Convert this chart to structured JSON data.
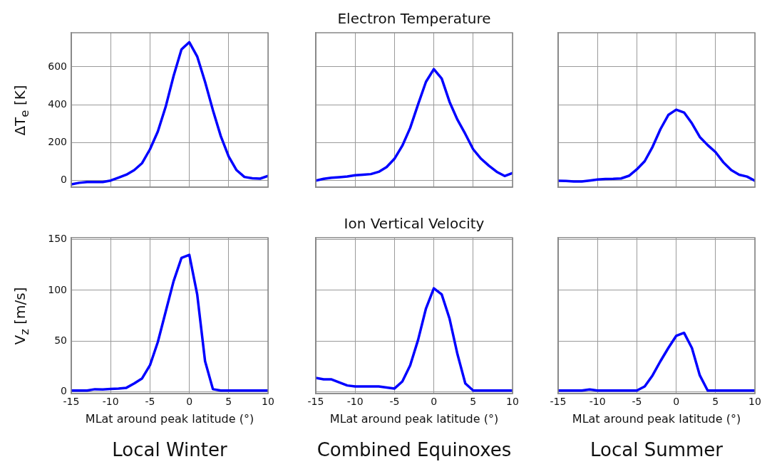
{
  "chart_data": [
    {
      "type": "line",
      "ylabel": "ΔT$_{e}$ [K]",
      "x": [
        -15,
        -14,
        -13,
        -12,
        -11,
        -10,
        -9,
        -8,
        -7,
        -6,
        -5,
        -4,
        -3,
        -2,
        -1,
        0,
        1,
        2,
        3,
        4,
        5,
        6,
        7,
        8,
        9,
        10
      ],
      "series": [
        {
          "color": "#0000ff",
          "values": [
            -20,
            -12,
            -8,
            -8,
            -8,
            0,
            15,
            31,
            55,
            92,
            165,
            259,
            390,
            552,
            692,
            730,
            655,
            521,
            371,
            234,
            127,
            55,
            19,
            12,
            10,
            25
          ]
        }
      ],
      "xlim": [
        -15,
        10
      ],
      "xticks": [
        -15,
        -10,
        -5,
        0,
        5,
        10
      ],
      "ylim": [
        -35,
        780
      ],
      "yticks": [
        0,
        200,
        400,
        600
      ],
      "grid": true,
      "tick_labels": "y",
      "marker": "none",
      "line_style": "solid"
    },
    {
      "type": "line",
      "title": "Electron Temperature",
      "x": [
        -15,
        -14,
        -13,
        -12,
        -11,
        -10,
        -9,
        -8,
        -7,
        -6,
        -5,
        -4,
        -3,
        -2,
        -1,
        0,
        1,
        2,
        3,
        4,
        5,
        6,
        7,
        8,
        9,
        10
      ],
      "series": [
        {
          "color": "#0000ff",
          "values": [
            0,
            9,
            15,
            18,
            21,
            28,
            31,
            34,
            46,
            71,
            115,
            184,
            278,
            402,
            521,
            588,
            538,
            415,
            321,
            246,
            165,
            115,
            78,
            46,
            24,
            40
          ]
        }
      ],
      "xlim": [
        -15,
        10
      ],
      "xticks": [
        -15,
        -10,
        -5,
        0,
        5,
        10
      ],
      "ylim": [
        -35,
        780
      ],
      "yticks": [
        0,
        200,
        400,
        600
      ],
      "grid": true,
      "tick_labels": false,
      "marker": "none",
      "line_style": "solid"
    },
    {
      "type": "line",
      "x": [
        -15,
        -14,
        -13,
        -12,
        -11,
        -10,
        -9,
        -8,
        -7,
        -6,
        -5,
        -4,
        -3,
        -2,
        -1,
        0,
        1,
        2,
        3,
        4,
        5,
        6,
        7,
        8,
        9,
        10
      ],
      "series": [
        {
          "color": "#0000ff",
          "values": [
            -1,
            -2,
            -5,
            -5,
            0,
            5,
            8,
            9,
            11,
            25,
            59,
            102,
            178,
            271,
            346,
            374,
            359,
            302,
            230,
            187,
            150,
            96,
            55,
            31,
            21,
            -1
          ]
        }
      ],
      "xlim": [
        -15,
        10
      ],
      "xticks": [
        -15,
        -10,
        -5,
        0,
        5,
        10
      ],
      "ylim": [
        -35,
        780
      ],
      "yticks": [
        0,
        200,
        400,
        600
      ],
      "grid": true,
      "tick_labels": false,
      "marker": "none",
      "line_style": "solid"
    },
    {
      "type": "line",
      "ylabel": "V$_{z}$ [m/s]",
      "xlabel": "MLat around peak latitude (°)",
      "annotations": [
        "Local Winter"
      ],
      "x": [
        -15,
        -14,
        -13,
        -12,
        -11,
        -10,
        -9,
        -8,
        -7,
        -6,
        -5,
        -4,
        -3,
        -2,
        -1,
        0,
        1,
        2,
        3,
        4,
        5,
        6,
        7,
        8,
        9,
        10
      ],
      "series": [
        {
          "color": "#0000ff",
          "values": [
            1,
            1,
            1,
            2.3,
            2,
            2.6,
            3,
            3.7,
            8,
            13,
            26,
            49,
            79,
            109,
            132,
            135,
            96,
            30,
            2.3,
            1,
            1,
            1,
            1,
            1,
            1,
            1
          ]
        }
      ],
      "xlim": [
        -15,
        10
      ],
      "xticks": [
        -15,
        -10,
        -5,
        0,
        5,
        10
      ],
      "ylim": [
        -2,
        152
      ],
      "yticks": [
        0,
        50,
        100,
        150
      ],
      "grid": true,
      "marker": "none",
      "line_style": "solid"
    },
    {
      "type": "line",
      "title": "Ion Vertical Velocity",
      "xlabel": "MLat around peak latitude (°)",
      "annotations": [
        "Combined Equinoxes"
      ],
      "x": [
        -15,
        -14,
        -13,
        -12,
        -11,
        -10,
        -9,
        -8,
        -7,
        -6,
        -5,
        -4,
        -3,
        -2,
        -1,
        0,
        1,
        2,
        3,
        4,
        5,
        6,
        7,
        8,
        9,
        10
      ],
      "series": [
        {
          "color": "#0000ff",
          "values": [
            13.5,
            12,
            12,
            9,
            6,
            5,
            5,
            5,
            5,
            4,
            3,
            10,
            26,
            51,
            82,
            102,
            96,
            72,
            37,
            8,
            1,
            1,
            1,
            1,
            1,
            1
          ]
        }
      ],
      "xlim": [
        -15,
        10
      ],
      "xticks": [
        -15,
        -10,
        -5,
        0,
        5,
        10
      ],
      "ylim": [
        -2,
        152
      ],
      "yticks": [
        0,
        50,
        100,
        150
      ],
      "grid": true,
      "tick_labels": "x",
      "marker": "none",
      "line_style": "solid"
    },
    {
      "type": "line",
      "xlabel": "MLat around peak latitude (°)",
      "annotations": [
        "Local Summer"
      ],
      "x": [
        -15,
        -14,
        -13,
        -12,
        -11,
        -10,
        -9,
        -8,
        -7,
        -6,
        -5,
        -4,
        -3,
        -2,
        -1,
        0,
        1,
        2,
        3,
        4,
        5,
        6,
        7,
        8,
        9,
        10
      ],
      "series": [
        {
          "color": "#0000ff",
          "values": [
            1,
            1,
            1,
            1,
            2,
            1,
            1,
            1,
            1,
            1,
            1,
            5,
            16,
            30,
            43,
            55,
            58,
            43,
            16,
            1,
            1,
            1,
            1,
            1,
            1,
            1
          ]
        }
      ],
      "xlim": [
        -15,
        10
      ],
      "xticks": [
        -15,
        -10,
        -5,
        0,
        5,
        10
      ],
      "ylim": [
        -2,
        152
      ],
      "yticks": [
        0,
        50,
        100,
        150
      ],
      "grid": true,
      "tick_labels": "x",
      "marker": "none",
      "line_style": "solid"
    }
  ]
}
